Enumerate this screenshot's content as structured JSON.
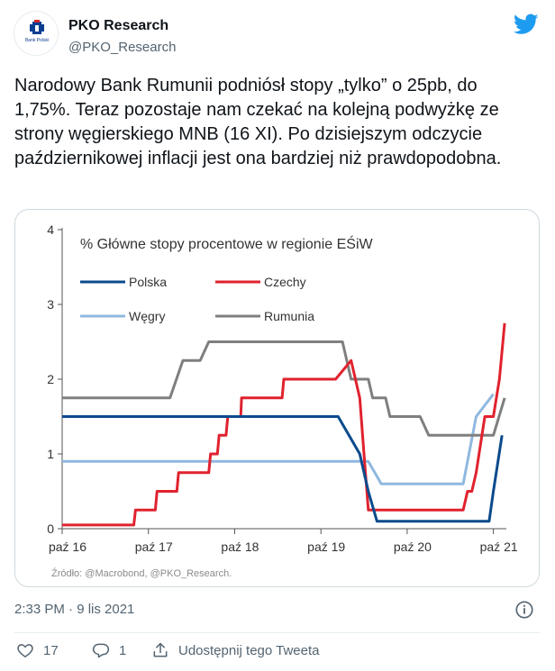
{
  "author": {
    "name": "PKO Research",
    "handle": "@PKO_Research",
    "avatar_caption": "Bank Polski"
  },
  "tweet_text": "Narodowy Bank Rumunii podniósł stopy „tylko” o 25pb, do 1,75%. Teraz pozostaje nam czekać na kolejną podwyżkę ze strony węgierskiego MNB (16 XI). Po dzisiejszym odczycie październikowej inflacji jest ona bardziej niż prawdopodobna.",
  "timestamp": "2:33 PM · 9 lis 2021",
  "actions": {
    "like_count": "17",
    "reply_count": "1",
    "share_label": "Udostępnij tego Tweeta"
  },
  "icons": {
    "brand": "twitter-bird-icon",
    "info": "info-icon",
    "like": "heart-icon",
    "reply": "reply-icon",
    "share": "share-icon"
  },
  "colors": {
    "twitter_blue": "#1d9bf0",
    "polska": "#0b4a8c",
    "czechy": "#e0222e",
    "wegry": "#8fb8e0",
    "rumunia": "#7f7f7f"
  },
  "chart_data": {
    "type": "line",
    "title": "% Główne stopy procentowe w regionie EŚiW",
    "source": "Źródło: @Macrobond, @PKO_Research.",
    "x_tick_labels": [
      "paź 16",
      "paź 17",
      "paź 18",
      "paź 19",
      "paź 20",
      "paź 21"
    ],
    "x_range": [
      2016.75,
      2021.9
    ],
    "ylim": [
      0,
      4
    ],
    "y_ticks": [
      "0",
      "1",
      "2",
      "3",
      "4"
    ],
    "legend_placement": "top-left",
    "grid": false,
    "series": [
      {
        "name": "Polska",
        "color": "#0b4a8c",
        "points": [
          [
            2016.75,
            1.5
          ],
          [
            2019.95,
            1.5
          ],
          [
            2020.2,
            1.0
          ],
          [
            2020.3,
            0.5
          ],
          [
            2020.4,
            0.1
          ],
          [
            2021.7,
            0.1
          ],
          [
            2021.75,
            0.5
          ],
          [
            2021.85,
            1.25
          ]
        ]
      },
      {
        "name": "Czechy",
        "color": "#e0222e",
        "points": [
          [
            2016.75,
            0.05
          ],
          [
            2017.58,
            0.05
          ],
          [
            2017.6,
            0.25
          ],
          [
            2017.83,
            0.25
          ],
          [
            2017.85,
            0.5
          ],
          [
            2018.08,
            0.5
          ],
          [
            2018.1,
            0.75
          ],
          [
            2018.45,
            0.75
          ],
          [
            2018.47,
            1.0
          ],
          [
            2018.55,
            1.0
          ],
          [
            2018.57,
            1.25
          ],
          [
            2018.65,
            1.25
          ],
          [
            2018.67,
            1.5
          ],
          [
            2018.82,
            1.5
          ],
          [
            2018.83,
            1.75
          ],
          [
            2019.3,
            1.75
          ],
          [
            2019.32,
            2.0
          ],
          [
            2019.92,
            2.0
          ],
          [
            2020.1,
            2.25
          ],
          [
            2020.2,
            1.75
          ],
          [
            2020.25,
            1.0
          ],
          [
            2020.3,
            0.25
          ],
          [
            2021.4,
            0.25
          ],
          [
            2021.45,
            0.5
          ],
          [
            2021.5,
            0.5
          ],
          [
            2021.55,
            0.75
          ],
          [
            2021.65,
            1.5
          ],
          [
            2021.75,
            1.5
          ],
          [
            2021.82,
            2.0
          ],
          [
            2021.88,
            2.75
          ]
        ]
      },
      {
        "name": "Węgry",
        "color": "#8fb8e0",
        "points": [
          [
            2016.75,
            0.9
          ],
          [
            2020.3,
            0.9
          ],
          [
            2020.45,
            0.6
          ],
          [
            2021.4,
            0.6
          ],
          [
            2021.55,
            1.5
          ],
          [
            2021.75,
            1.8
          ]
        ]
      },
      {
        "name": "Rumunia",
        "color": "#7f7f7f",
        "points": [
          [
            2016.75,
            1.75
          ],
          [
            2018.0,
            1.75
          ],
          [
            2018.15,
            2.25
          ],
          [
            2018.35,
            2.25
          ],
          [
            2018.45,
            2.5
          ],
          [
            2020.0,
            2.5
          ],
          [
            2020.1,
            2.0
          ],
          [
            2020.3,
            2.0
          ],
          [
            2020.35,
            1.75
          ],
          [
            2020.5,
            1.75
          ],
          [
            2020.55,
            1.5
          ],
          [
            2020.9,
            1.5
          ],
          [
            2021.0,
            1.25
          ],
          [
            2021.75,
            1.25
          ],
          [
            2021.88,
            1.75
          ]
        ]
      }
    ]
  }
}
